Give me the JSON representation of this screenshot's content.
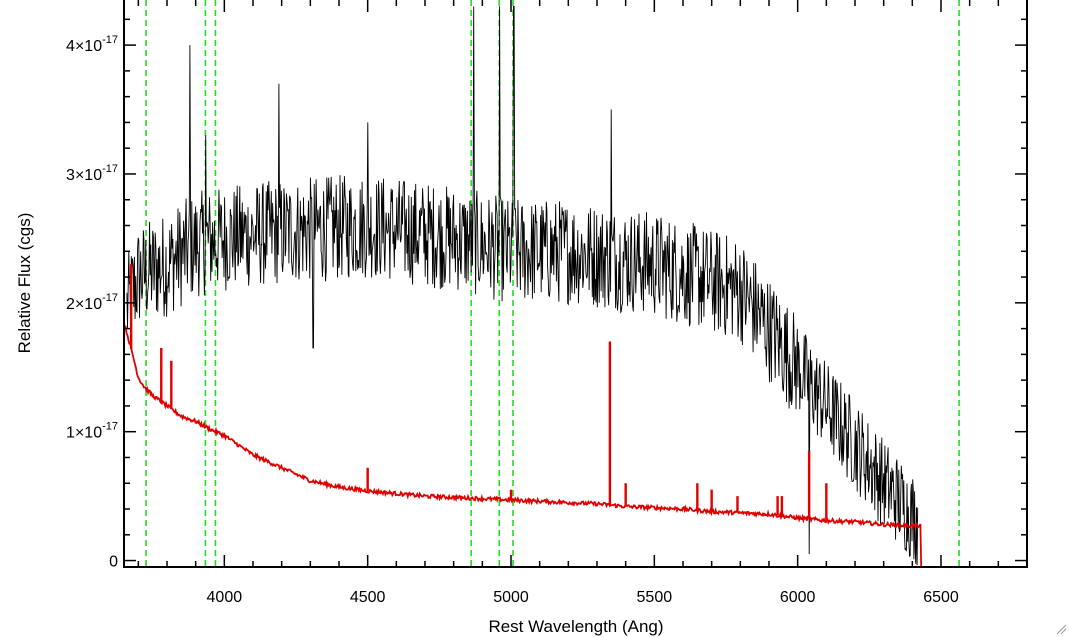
{
  "chart_data": {
    "type": "line",
    "xlabel": "Rest Wavelength (Ang)",
    "ylabel": "Relative Flux (cgs)",
    "xlim": [
      3650,
      6800
    ],
    "ylim": [
      -5e-19,
      4.35e-17
    ],
    "x_ticks": [
      4000,
      4500,
      5000,
      5500,
      6000,
      6500
    ],
    "x_tick_labels": [
      "4000",
      "4500",
      "5000",
      "5500",
      "6000",
      "6500"
    ],
    "y_ticks": [
      0,
      1e-17,
      2e-17,
      3e-17,
      4e-17
    ],
    "y_tick_labels": [
      {
        "mantissa": "0",
        "exponent": ""
      },
      {
        "mantissa": "1×10",
        "exponent": "-17"
      },
      {
        "mantissa": "2×10",
        "exponent": "-17"
      },
      {
        "mantissa": "3×10",
        "exponent": "-17"
      },
      {
        "mantissa": "4×10",
        "exponent": "-17"
      }
    ],
    "minor_x_step": 100,
    "minor_y_step": 2e-18,
    "reference_lines_x": [
      3727,
      3934,
      3969,
      4861,
      4959,
      5007,
      6563
    ],
    "series": [
      {
        "color": "#000000",
        "style": "solid",
        "note_envelope": [
          [
            3660,
            1.95
          ],
          [
            3700,
            2.2
          ],
          [
            3800,
            2.3
          ],
          [
            3900,
            2.45
          ],
          [
            4000,
            2.5
          ],
          [
            4200,
            2.55
          ],
          [
            4500,
            2.6
          ],
          [
            4800,
            2.5
          ],
          [
            5000,
            2.4
          ],
          [
            5200,
            2.4
          ],
          [
            5500,
            2.3
          ],
          [
            5800,
            2.1
          ],
          [
            6000,
            1.5
          ],
          [
            6200,
            0.9
          ],
          [
            6300,
            0.6
          ],
          [
            6420,
            0.3
          ]
        ],
        "spikes": [
          [
            3720,
            2.5
          ],
          [
            3880,
            4.0
          ],
          [
            3935,
            3.3
          ],
          [
            4190,
            3.7
          ],
          [
            4310,
            1.65
          ],
          [
            4500,
            3.4
          ],
          [
            4870,
            4.3
          ],
          [
            4960,
            4.3
          ],
          [
            5010,
            4.3
          ],
          [
            5350,
            3.5
          ],
          [
            6040,
            0.05
          ]
        ],
        "x_end": 6420
      },
      {
        "color": "#e00000",
        "style": "solid",
        "values_x": [
          3650,
          3680,
          3700,
          3720,
          3750,
          3800,
          3850,
          3900,
          3950,
          4000,
          4100,
          4200,
          4300,
          4400,
          4500,
          4600,
          4700,
          4800,
          4900,
          5000,
          5100,
          5200,
          5300,
          5400,
          5500,
          5600,
          5700,
          5800,
          5900,
          6000,
          6100,
          6200,
          6300,
          6400,
          6430,
          6431,
          6800
        ],
        "values_y": [
          1.85,
          1.6,
          1.42,
          1.35,
          1.28,
          1.2,
          1.12,
          1.08,
          1.02,
          0.97,
          0.82,
          0.72,
          0.62,
          0.57,
          0.54,
          0.52,
          0.5,
          0.49,
          0.48,
          0.47,
          0.46,
          0.45,
          0.44,
          0.42,
          0.41,
          0.4,
          0.38,
          0.37,
          0.36,
          0.33,
          0.31,
          0.3,
          0.28,
          0.27,
          0.27,
          -0.05,
          -0.05
        ],
        "spikes": [
          [
            3675,
            2.3
          ],
          [
            3780,
            1.65
          ],
          [
            3815,
            1.55
          ],
          [
            4500,
            0.72
          ],
          [
            5000,
            0.55
          ],
          [
            5345,
            1.7
          ],
          [
            5400,
            0.6
          ],
          [
            5650,
            0.6
          ],
          [
            5700,
            0.55
          ],
          [
            5790,
            0.5
          ],
          [
            5930,
            0.5
          ],
          [
            5945,
            0.5
          ],
          [
            6040,
            0.85
          ],
          [
            6100,
            0.6
          ]
        ]
      }
    ],
    "colors": {
      "spectrum": "#000000",
      "model": "#e00000",
      "reference_lines": "#22dd22",
      "axes": "#000000",
      "background": "#ffffff"
    }
  }
}
